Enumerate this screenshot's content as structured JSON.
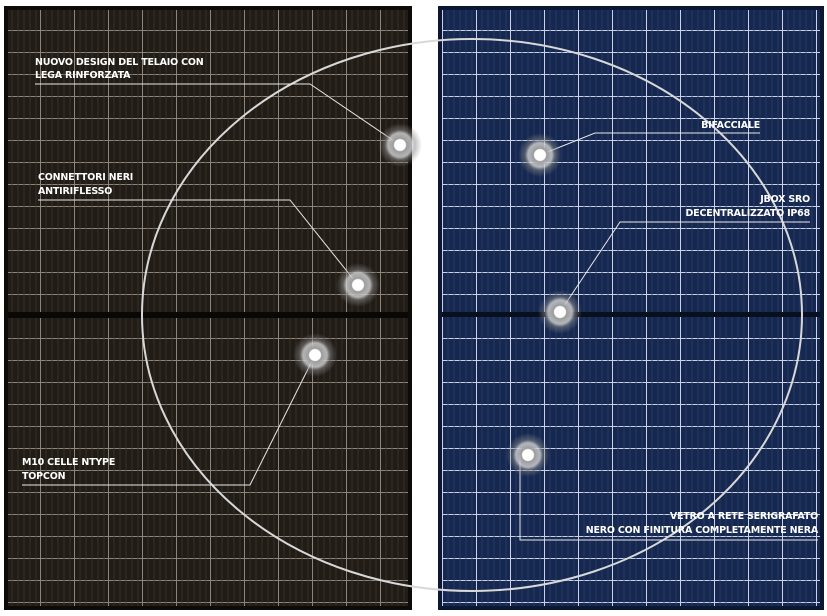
{
  "labels": [
    {
      "lines": [
        "NUOVO DESIGN DEL TELAIO CON",
        "LEGA RINFORZATA"
      ]
    },
    {
      "lines": [
        "CONNETTORI NERI",
        "ANTIRIFLESSO"
      ]
    },
    {
      "lines": [
        "M10 CELLE NTYPE",
        "TOPCON"
      ]
    },
    {
      "lines": [
        "BIFACCIALE"
      ]
    },
    {
      "lines": [
        "JBOX SRO",
        "DECENTRALIZZATO IP68"
      ]
    },
    {
      "lines": [
        "VETRO A RETE SERIGRAFATO",
        "NERO CON FINITURA COMPLETAMENTE NERA"
      ]
    }
  ]
}
